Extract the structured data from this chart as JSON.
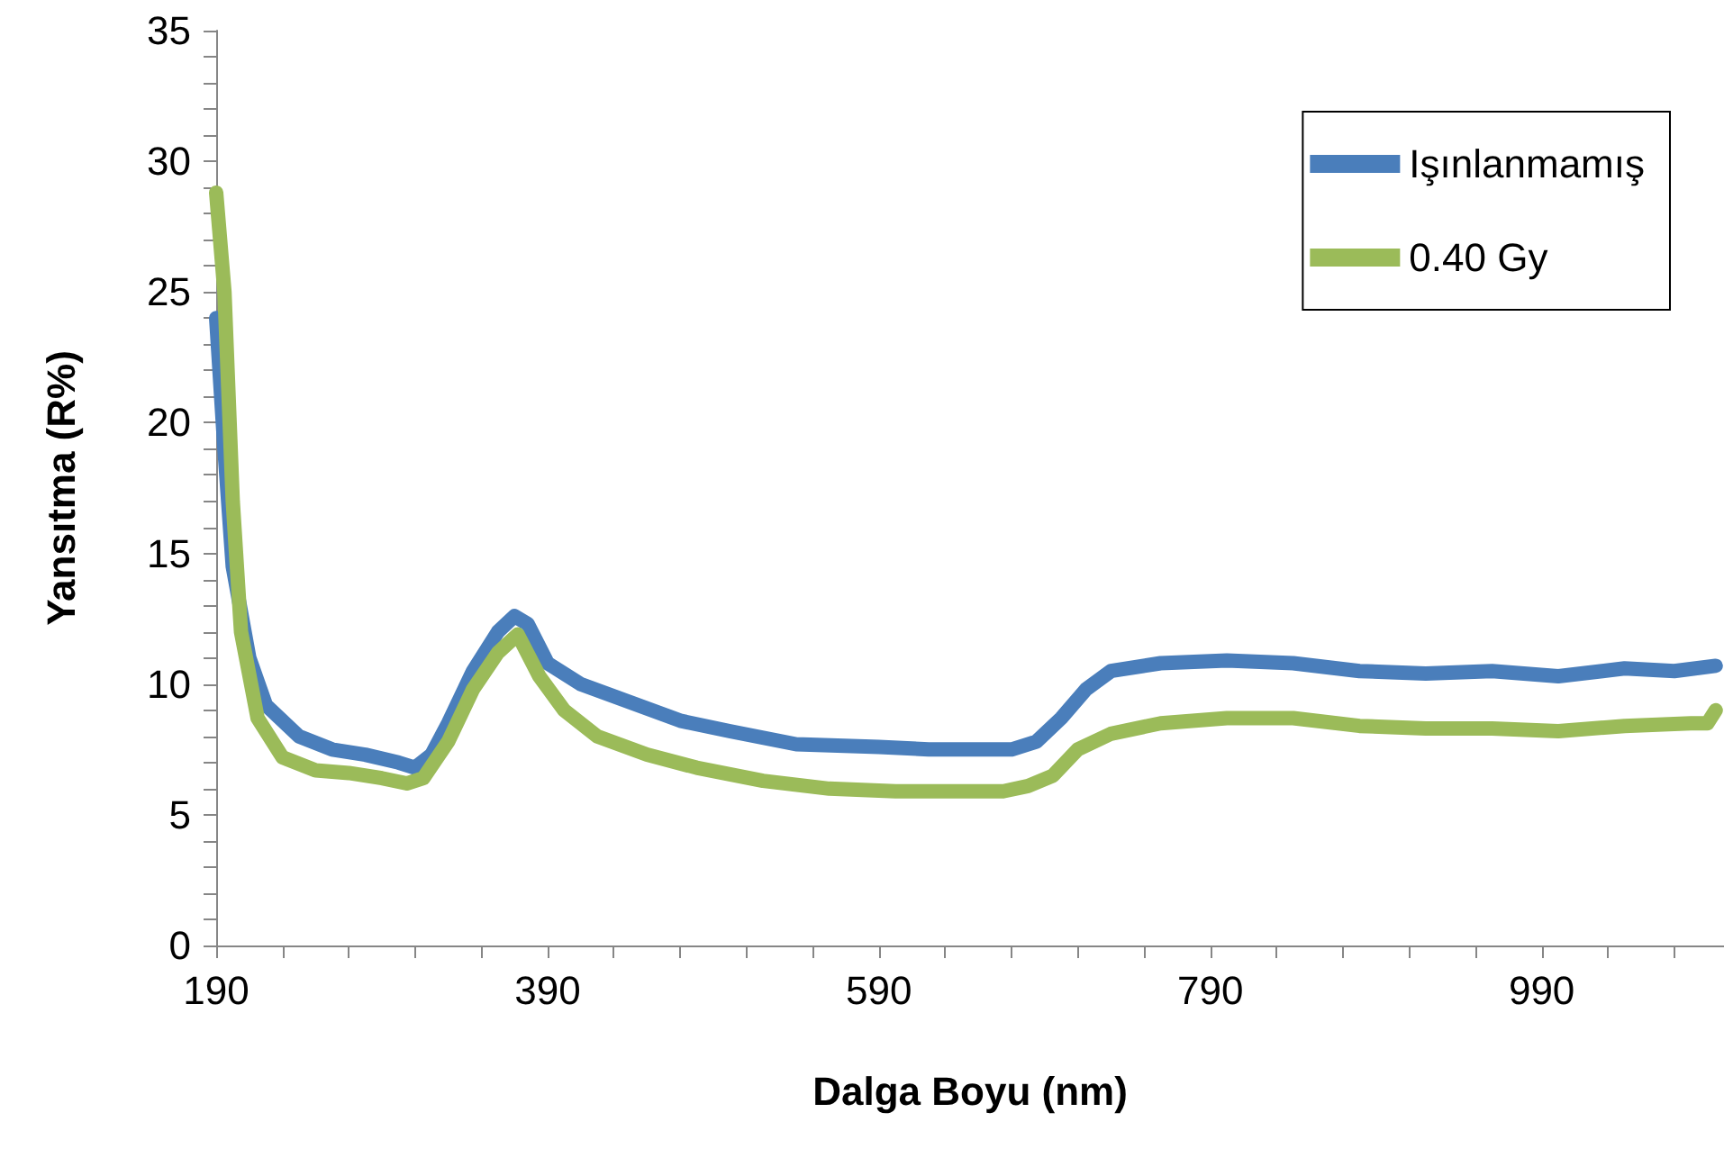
{
  "chart_data": {
    "type": "line",
    "xlabel": "Dalga Boyu (nm)",
    "ylabel": "Yansıtma (R%)",
    "xlim": [
      190,
      1100
    ],
    "xticks": [
      190,
      {
        "value": 230,
        "label": null
      },
      {
        "value": 270,
        "label": null
      },
      {
        "value": 310,
        "label": null
      },
      {
        "value": 350,
        "label": null
      },
      390,
      {
        "value": 430,
        "label": null
      },
      {
        "value": 470,
        "label": null
      },
      {
        "value": 510,
        "label": null
      },
      {
        "value": 550,
        "label": null
      },
      590,
      {
        "value": 630,
        "label": null
      },
      {
        "value": 670,
        "label": null
      },
      {
        "value": 710,
        "label": null
      },
      {
        "value": 750,
        "label": null
      },
      790,
      {
        "value": 830,
        "label": null
      },
      {
        "value": 870,
        "label": null
      },
      {
        "value": 910,
        "label": null
      },
      {
        "value": 950,
        "label": null
      },
      990,
      {
        "value": 1030,
        "label": null
      },
      {
        "value": 1070,
        "label": null
      }
    ],
    "ylim": [
      0,
      35
    ],
    "yticks": [
      0,
      {
        "value": 1,
        "label": null
      },
      {
        "value": 2,
        "label": null
      },
      {
        "value": 3,
        "label": null
      },
      {
        "value": 4,
        "label": null
      },
      5,
      {
        "value": 6,
        "label": null
      },
      {
        "value": 7,
        "label": null
      },
      {
        "value": 8,
        "label": null
      },
      {
        "value": 9,
        "label": null
      },
      10,
      {
        "value": 11,
        "label": null
      },
      {
        "value": 12,
        "label": null
      },
      {
        "value": 13,
        "label": null
      },
      {
        "value": 14,
        "label": null
      },
      15,
      {
        "value": 16,
        "label": null
      },
      {
        "value": 17,
        "label": null
      },
      {
        "value": 18,
        "label": null
      },
      {
        "value": 19,
        "label": null
      },
      20,
      {
        "value": 21,
        "label": null
      },
      {
        "value": 22,
        "label": null
      },
      {
        "value": 23,
        "label": null
      },
      {
        "value": 24,
        "label": null
      },
      25,
      {
        "value": 26,
        "label": null
      },
      {
        "value": 27,
        "label": null
      },
      {
        "value": 28,
        "label": null
      },
      {
        "value": 29,
        "label": null
      },
      30,
      {
        "value": 31,
        "label": null
      },
      {
        "value": 32,
        "label": null
      },
      {
        "value": 33,
        "label": null
      },
      {
        "value": 34,
        "label": null
      },
      35
    ],
    "grid": false,
    "legend": "top right",
    "marker": "none",
    "line_style": "solid",
    "series": [
      {
        "name": "Işınlanmamış",
        "color": "#4a7ebb",
        "x": [
          190,
          195,
          200,
          210,
          220,
          240,
          260,
          280,
          300,
          310,
          320,
          330,
          345,
          360,
          370,
          378,
          390,
          410,
          440,
          470,
          500,
          540,
          590,
          620,
          670,
          685,
          700,
          715,
          730,
          760,
          800,
          840,
          880,
          920,
          960,
          1000,
          1040,
          1070,
          1095
        ],
        "values": [
          24,
          19,
          14.5,
          11,
          9.2,
          8,
          7.5,
          7.3,
          7.0,
          6.8,
          7.3,
          8.5,
          10.5,
          12,
          12.6,
          12.3,
          10.8,
          10,
          9.3,
          8.6,
          8.2,
          7.7,
          7.6,
          7.5,
          7.5,
          7.8,
          8.7,
          9.8,
          10.5,
          10.8,
          10.9,
          10.8,
          10.5,
          10.4,
          10.5,
          10.3,
          10.6,
          10.5,
          10.7
        ]
      },
      {
        "name": "0.40 Gy",
        "color": "#9bbb59",
        "x": [
          190,
          195,
          200,
          205,
          215,
          230,
          250,
          270,
          290,
          305,
          315,
          330,
          345,
          360,
          372,
          385,
          400,
          420,
          450,
          480,
          520,
          560,
          600,
          640,
          665,
          680,
          695,
          710,
          730,
          760,
          800,
          840,
          880,
          920,
          960,
          1000,
          1040,
          1080,
          1090,
          1095
        ],
        "values": [
          28.8,
          25,
          17,
          12,
          8.7,
          7.2,
          6.7,
          6.6,
          6.4,
          6.2,
          6.4,
          7.8,
          9.8,
          11.2,
          11.9,
          10.3,
          9.0,
          8.0,
          7.3,
          6.8,
          6.3,
          6.0,
          5.9,
          5.9,
          5.9,
          6.1,
          6.5,
          7.5,
          8.1,
          8.5,
          8.7,
          8.7,
          8.4,
          8.3,
          8.3,
          8.2,
          8.4,
          8.5,
          8.5,
          9.0
        ]
      }
    ]
  }
}
